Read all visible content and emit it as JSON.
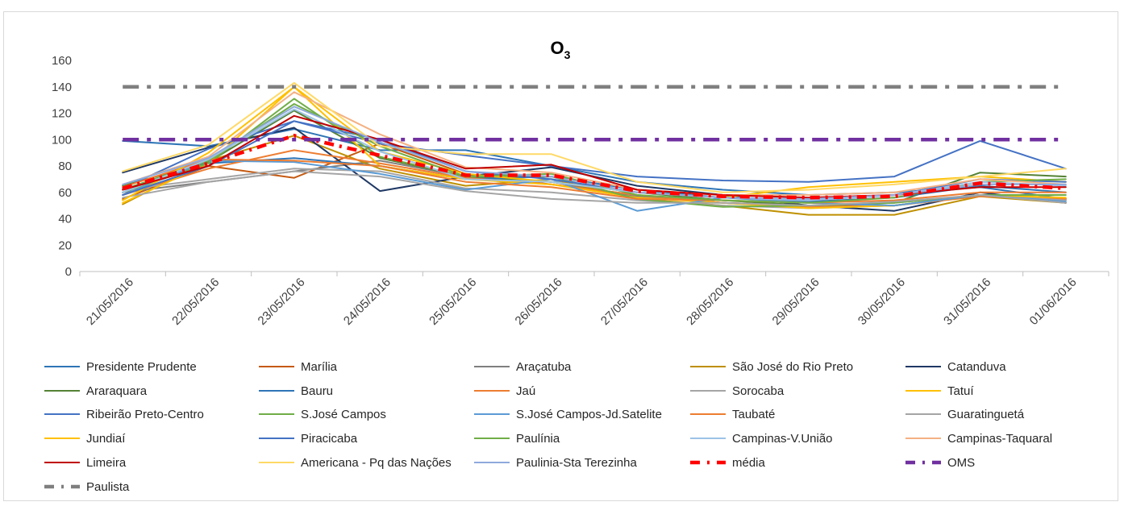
{
  "chart_data": {
    "type": "line",
    "title": "O",
    "title_subscript": "3",
    "xlabel": "",
    "ylabel": "",
    "ylim": [
      0,
      160
    ],
    "yticks": [
      "0",
      "20",
      "40",
      "60",
      "80",
      "100",
      "120",
      "140",
      "160"
    ],
    "grid": false,
    "legend_position": "bottom",
    "categories": [
      "21/05/2016",
      "22/05/2016",
      "23/05/2016",
      "24/05/2016",
      "25/05/2016",
      "26/05/2016",
      "27/05/2016",
      "28/05/2016",
      "29/05/2016",
      "30/05/2016",
      "31/05/2016",
      "01/06/2016"
    ],
    "series": [
      {
        "name": "Presidente Prudente",
        "color": "#2e75b6",
        "style": "solid",
        "values": [
          99,
          95,
          108,
          92,
          92,
          80,
          68,
          62,
          58,
          60,
          64,
          55
        ]
      },
      {
        "name": "Marília",
        "color": "#c55a11",
        "style": "solid",
        "values": [
          55,
          80,
          71,
          97,
          74,
          66,
          58,
          52,
          50,
          50,
          58,
          55
        ]
      },
      {
        "name": "Araçatuba",
        "color": "#7f7f7f",
        "style": "solid",
        "values": [
          60,
          68,
          76,
          84,
          72,
          68,
          57,
          52,
          49,
          50,
          58,
          54
        ]
      },
      {
        "name": "São José do Rio Preto",
        "color": "#bf9000",
        "style": "solid",
        "values": [
          51,
          84,
          103,
          78,
          65,
          70,
          55,
          50,
          43,
          43,
          57,
          52
        ]
      },
      {
        "name": "Catanduva",
        "color": "#1f3864",
        "style": "solid",
        "values": [
          75,
          94,
          109,
          61,
          72,
          79,
          65,
          58,
          50,
          46,
          60,
          52
        ]
      },
      {
        "name": "Araraquara",
        "color": "#548235",
        "style": "solid",
        "values": [
          65,
          83,
          122,
          86,
          72,
          68,
          60,
          54,
          50,
          52,
          75,
          72
        ]
      },
      {
        "name": "Bauru",
        "color": "#2e75b6",
        "style": "solid",
        "values": [
          60,
          82,
          86,
          80,
          70,
          72,
          62,
          56,
          53,
          56,
          65,
          60
        ]
      },
      {
        "name": "Jaú",
        "color": "#ed7d31",
        "style": "solid",
        "values": [
          58,
          78,
          92,
          82,
          71,
          66,
          58,
          52,
          49,
          50,
          57,
          55
        ]
      },
      {
        "name": "Sorocaba",
        "color": "#a5a5a5",
        "style": "solid",
        "values": [
          62,
          70,
          78,
          76,
          63,
          60,
          54,
          50,
          48,
          50,
          58,
          54
        ]
      },
      {
        "name": "Tatuí",
        "color": "#ffc000",
        "style": "solid",
        "values": [
          52,
          82,
          140,
          80,
          70,
          66,
          56,
          52,
          48,
          50,
          58,
          56
        ]
      },
      {
        "name": "Ribeirão Preto-Centro",
        "color": "#4472c4",
        "style": "solid",
        "values": [
          63,
          93,
          114,
          97,
          88,
          80,
          72,
          69,
          68,
          72,
          99,
          78
        ]
      },
      {
        "name": "S.José Campos",
        "color": "#70ad47",
        "style": "solid",
        "values": [
          60,
          82,
          131,
          87,
          72,
          72,
          55,
          49,
          50,
          52,
          58,
          58
        ]
      },
      {
        "name": "S.José Campos-Jd.Satelite",
        "color": "#5b9bd5",
        "style": "solid",
        "values": [
          58,
          84,
          83,
          74,
          62,
          70,
          46,
          56,
          52,
          50,
          58,
          53
        ]
      },
      {
        "name": "Taubaté",
        "color": "#ed7d31",
        "style": "solid",
        "values": [
          64,
          85,
          84,
          80,
          68,
          64,
          55,
          54,
          52,
          54,
          60,
          60
        ]
      },
      {
        "name": "Guaratinguetá",
        "color": "#a5a5a5",
        "style": "solid",
        "values": [
          56,
          68,
          76,
          72,
          61,
          55,
          52,
          52,
          50,
          53,
          58,
          52
        ]
      },
      {
        "name": "Jundiaí",
        "color": "#ffc000",
        "style": "solid",
        "values": [
          54,
          90,
          140,
          91,
          74,
          68,
          60,
          56,
          64,
          68,
          72,
          68
        ]
      },
      {
        "name": "Piracicaba",
        "color": "#4472c4",
        "style": "solid",
        "values": [
          58,
          80,
          114,
          100,
          76,
          70,
          60,
          56,
          54,
          58,
          70,
          68
        ]
      },
      {
        "name": "Paulínia",
        "color": "#70ad47",
        "style": "solid",
        "values": [
          62,
          84,
          127,
          95,
          72,
          74,
          58,
          54,
          52,
          56,
          68,
          70
        ]
      },
      {
        "name": "Campinas-V.União",
        "color": "#9dc3e6",
        "style": "solid",
        "values": [
          60,
          85,
          123,
          91,
          70,
          68,
          60,
          56,
          54,
          58,
          68,
          65
        ]
      },
      {
        "name": "Campinas-Taquaral",
        "color": "#f4b183",
        "style": "solid",
        "values": [
          66,
          87,
          136,
          104,
          79,
          75,
          62,
          58,
          58,
          60,
          70,
          66
        ]
      },
      {
        "name": "Limeira",
        "color": "#c00000",
        "style": "solid",
        "values": [
          62,
          80,
          118,
          100,
          78,
          81,
          62,
          58,
          56,
          58,
          64,
          64
        ]
      },
      {
        "name": "Americana - Pq das Nações",
        "color": "#ffd966",
        "style": "solid",
        "values": [
          76,
          96,
          143,
          95,
          89,
          89,
          68,
          60,
          62,
          66,
          72,
          78
        ]
      },
      {
        "name": "Paulinia-Sta Terezinha",
        "color": "#8faadc",
        "style": "solid",
        "values": [
          66,
          86,
          125,
          98,
          76,
          72,
          60,
          56,
          55,
          58,
          66,
          66
        ]
      },
      {
        "name": "média",
        "color": "#ff0000",
        "style": "dash-dot-red",
        "values": [
          63,
          82,
          103,
          88,
          73,
          73,
          61,
          57,
          56,
          57,
          67,
          63
        ]
      },
      {
        "name": "OMS",
        "color": "#7030a0",
        "style": "dash-dot-purple",
        "values": [
          100,
          100,
          100,
          100,
          100,
          100,
          100,
          100,
          100,
          100,
          100,
          100
        ]
      },
      {
        "name": "Paulista",
        "color": "#7f7f7f",
        "style": "dash-dot-gray",
        "values": [
          140,
          140,
          140,
          140,
          140,
          140,
          140,
          140,
          140,
          140,
          140,
          140
        ]
      }
    ]
  }
}
